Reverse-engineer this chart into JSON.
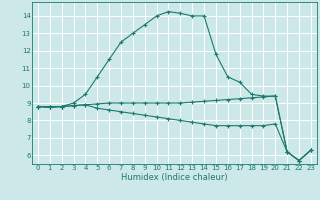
{
  "xlabel": "Humidex (Indice chaleur)",
  "background_color": "#cde8e8",
  "grid_color": "#ffffff",
  "line_color": "#1a7a6e",
  "xlim": [
    -0.5,
    23.5
  ],
  "ylim": [
    5.5,
    14.8
  ],
  "yticks": [
    6,
    7,
    8,
    9,
    10,
    11,
    12,
    13,
    14
  ],
  "xticks": [
    0,
    1,
    2,
    3,
    4,
    5,
    6,
    7,
    8,
    9,
    10,
    11,
    12,
    13,
    14,
    15,
    16,
    17,
    18,
    19,
    20,
    21,
    22,
    23
  ],
  "line1_x": [
    0,
    1,
    2,
    3,
    4,
    5,
    6,
    7,
    8,
    9,
    10,
    11,
    12,
    13,
    14,
    15,
    16,
    17,
    18,
    19,
    20,
    21,
    22,
    23
  ],
  "line1_y": [
    8.8,
    8.8,
    8.8,
    9.0,
    9.5,
    10.5,
    11.5,
    12.5,
    13.0,
    13.5,
    14.0,
    14.25,
    14.15,
    14.0,
    14.0,
    11.8,
    10.5,
    10.2,
    9.5,
    9.4,
    9.4,
    6.2,
    5.7,
    6.3
  ],
  "line2_x": [
    0,
    1,
    2,
    3,
    4,
    5,
    6,
    7,
    8,
    9,
    10,
    11,
    12,
    13,
    14,
    15,
    16,
    17,
    18,
    19,
    20,
    21,
    22,
    23
  ],
  "line2_y": [
    8.8,
    8.75,
    8.8,
    8.85,
    8.9,
    8.95,
    9.0,
    9.0,
    9.0,
    9.0,
    9.0,
    9.0,
    9.0,
    9.05,
    9.1,
    9.15,
    9.2,
    9.25,
    9.3,
    9.35,
    9.4,
    6.2,
    5.7,
    6.3
  ],
  "line3_x": [
    0,
    1,
    2,
    3,
    4,
    5,
    6,
    7,
    8,
    9,
    10,
    11,
    12,
    13,
    14,
    15,
    16,
    17,
    18,
    19,
    20,
    21,
    22,
    23
  ],
  "line3_y": [
    8.8,
    8.75,
    8.8,
    8.85,
    8.9,
    8.7,
    8.6,
    8.5,
    8.4,
    8.3,
    8.2,
    8.1,
    8.0,
    7.9,
    7.8,
    7.7,
    7.7,
    7.7,
    7.7,
    7.7,
    7.8,
    6.2,
    5.7,
    6.3
  ]
}
